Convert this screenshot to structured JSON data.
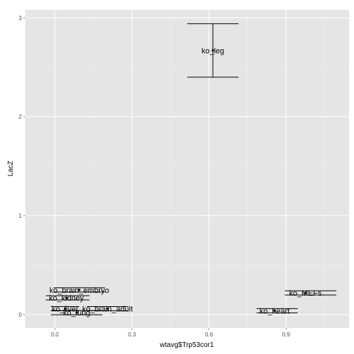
{
  "chart_data": {
    "type": "scatter",
    "xlabel": "wtavg$Trp53cor1",
    "ylabel": "LacZ",
    "xlim": [
      -0.115,
      1.145
    ],
    "ylim": [
      -0.135,
      3.08
    ],
    "xticks": [
      0.0,
      0.3,
      0.6,
      0.9
    ],
    "xtick_labels": [
      "0.0",
      "0.3",
      "0.6",
      "0.9"
    ],
    "yticks": [
      0,
      1,
      2,
      3
    ],
    "ytick_labels": [
      "0",
      "1",
      "2",
      "3"
    ],
    "grid": true,
    "legend": "none",
    "points": [
      {
        "label": "ko_leg",
        "x": 0.615,
        "y": 2.67,
        "ymin": 2.4,
        "ymax": 2.94,
        "xmin": 0.615,
        "xmax": 0.615,
        "cap_half": 0.1
      },
      {
        "label": "ko_brain_embryo",
        "x": 0.095,
        "y": 0.25,
        "ymin": 0.25,
        "ymax": 0.25,
        "xmin": -0.005,
        "xmax": 0.195
      },
      {
        "label": "ko_kidney",
        "x": 0.045,
        "y": 0.17,
        "ymin": 0.17,
        "ymax": 0.17,
        "xmin": -0.035,
        "xmax": 0.135
      },
      {
        "label": "ko_liver",
        "x": 0.04,
        "y": 0.06,
        "ymin": 0.06,
        "ymax": 0.06,
        "xmin": -0.015,
        "xmax": 0.095
      },
      {
        "label": "ko_brain_adult",
        "x": 0.205,
        "y": 0.06,
        "ymin": 0.06,
        "ymax": 0.06,
        "xmin": 0.125,
        "xmax": 0.285
      },
      {
        "label": "ko_lung",
        "x": 0.085,
        "y": 0.02,
        "ymin": 0.02,
        "ymax": 0.02,
        "xmin": -0.015,
        "xmax": 0.185
      },
      {
        "label": "ko_MEFs",
        "x": 0.975,
        "y": 0.22,
        "ymin": 0.22,
        "ymax": 0.22,
        "xmin": 0.895,
        "xmax": 1.095
      },
      {
        "label": "ko_heart",
        "x": 0.855,
        "y": 0.04,
        "ymin": 0.04,
        "ymax": 0.04,
        "xmin": 0.785,
        "xmax": 0.945
      }
    ],
    "colors": {
      "panel_bg": "#e5e5e5",
      "grid_major": "#ffffff",
      "grid_minor": "#f2f2f2",
      "mark": "#000000",
      "tick_text": "#4d4d4d"
    }
  }
}
